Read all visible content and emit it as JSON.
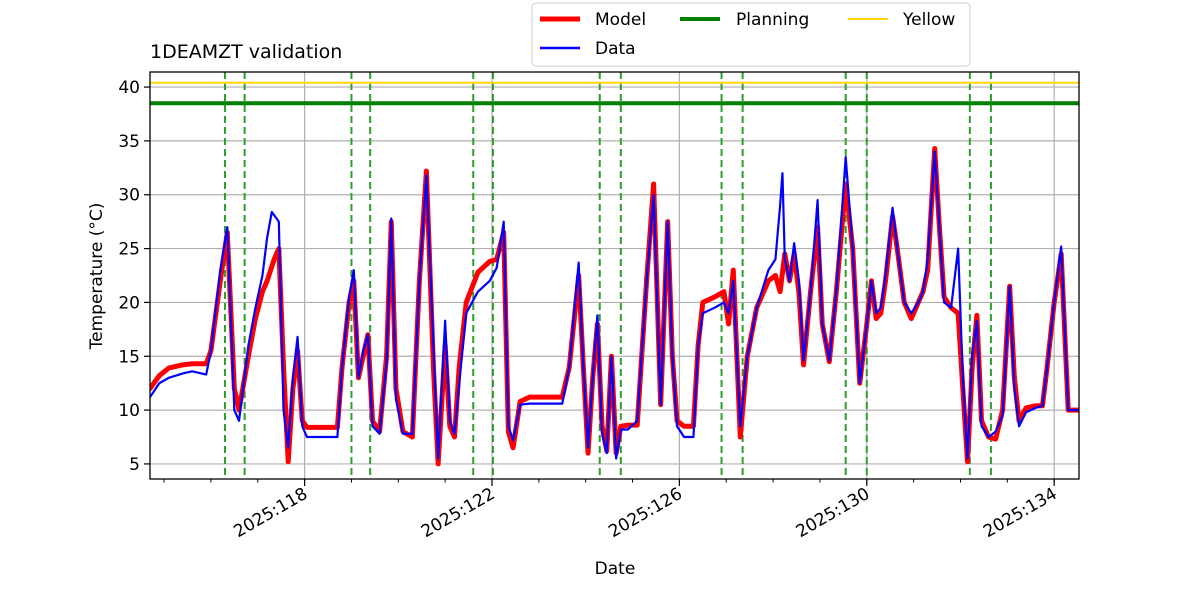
{
  "chart_data": {
    "type": "line",
    "title": "1DEAMZT validation",
    "xlabel": "Date",
    "ylabel": "Temperature ($^\\circ$C)",
    "ylabel_display": "Temperature (°C)",
    "xlim": [
      114.7,
      134.53
    ],
    "ylim": [
      3.6,
      41.4
    ],
    "xticks": [
      118,
      122,
      126,
      130,
      134
    ],
    "xtick_labels": [
      "2025:118",
      "2025:122",
      "2025:126",
      "2025:130",
      "2025:134"
    ],
    "yticks": [
      5,
      10,
      15,
      20,
      25,
      30,
      35,
      40
    ],
    "ytick_labels": [
      "5",
      "10",
      "15",
      "20",
      "25",
      "30",
      "35",
      "40"
    ],
    "grid": true,
    "legend": {
      "position": "top-center, above plot",
      "entries": [
        {
          "label": "Model",
          "color": "#ff0000"
        },
        {
          "label": "Data",
          "color": "#0000ff"
        },
        {
          "label": "Planning",
          "color": "#008000"
        },
        {
          "label": "Yellow",
          "color": "#ffd700"
        }
      ]
    },
    "limits": {
      "planning": 38.5,
      "yellow": 40.4
    },
    "event_markers_x": [
      116.3,
      116.72,
      119.0,
      119.4,
      121.6,
      122.02,
      124.3,
      124.75,
      126.9,
      127.35,
      129.55,
      130.0,
      132.2,
      132.65
    ],
    "series": [
      {
        "name": "Model",
        "color": "#ff0000",
        "points": [
          [
            114.7,
            12
          ],
          [
            114.9,
            13.2
          ],
          [
            115.1,
            13.9
          ],
          [
            115.4,
            14.2
          ],
          [
            115.6,
            14.3
          ],
          [
            115.9,
            14.3
          ],
          [
            116.0,
            15.5
          ],
          [
            116.2,
            22
          ],
          [
            116.35,
            26.5
          ],
          [
            116.5,
            12
          ],
          [
            116.6,
            10
          ],
          [
            116.8,
            15
          ],
          [
            116.95,
            18.5
          ],
          [
            117.1,
            21
          ],
          [
            117.2,
            22
          ],
          [
            117.35,
            24
          ],
          [
            117.45,
            25
          ],
          [
            117.55,
            14
          ],
          [
            117.65,
            5.2
          ],
          [
            117.75,
            12
          ],
          [
            117.85,
            15.5
          ],
          [
            117.95,
            9
          ],
          [
            118.05,
            8.4
          ],
          [
            118.5,
            8.4
          ],
          [
            118.7,
            8.4
          ],
          [
            118.8,
            14
          ],
          [
            118.95,
            20
          ],
          [
            119.05,
            22
          ],
          [
            119.15,
            13
          ],
          [
            119.25,
            15
          ],
          [
            119.35,
            17
          ],
          [
            119.45,
            9
          ],
          [
            119.6,
            8
          ],
          [
            119.75,
            15
          ],
          [
            119.85,
            27.5
          ],
          [
            119.95,
            12
          ],
          [
            120.1,
            8
          ],
          [
            120.3,
            7.5
          ],
          [
            120.45,
            22
          ],
          [
            120.6,
            32.2
          ],
          [
            120.75,
            14
          ],
          [
            120.85,
            5
          ],
          [
            121.0,
            16
          ],
          [
            121.1,
            8.5
          ],
          [
            121.2,
            7.5
          ],
          [
            121.3,
            14
          ],
          [
            121.45,
            20
          ],
          [
            121.7,
            22.8
          ],
          [
            121.95,
            23.8
          ],
          [
            122.1,
            24
          ],
          [
            122.25,
            26.5
          ],
          [
            122.35,
            8
          ],
          [
            122.45,
            6.5
          ],
          [
            122.6,
            10.8
          ],
          [
            122.8,
            11.2
          ],
          [
            123.0,
            11.2
          ],
          [
            123.3,
            11.2
          ],
          [
            123.5,
            11.2
          ],
          [
            123.65,
            14
          ],
          [
            123.85,
            22.5
          ],
          [
            123.95,
            14
          ],
          [
            124.05,
            6
          ],
          [
            124.15,
            13
          ],
          [
            124.25,
            18
          ],
          [
            124.35,
            8.5
          ],
          [
            124.45,
            6.2
          ],
          [
            124.55,
            15
          ],
          [
            124.65,
            6
          ],
          [
            124.75,
            8.5
          ],
          [
            124.9,
            8.6
          ],
          [
            125.1,
            8.6
          ],
          [
            125.3,
            22
          ],
          [
            125.45,
            31
          ],
          [
            125.6,
            10.5
          ],
          [
            125.75,
            27.5
          ],
          [
            125.85,
            15
          ],
          [
            125.95,
            9
          ],
          [
            126.1,
            8.5
          ],
          [
            126.3,
            8.5
          ],
          [
            126.4,
            16
          ],
          [
            126.5,
            20
          ],
          [
            126.75,
            20.5
          ],
          [
            126.95,
            21
          ],
          [
            127.05,
            18
          ],
          [
            127.15,
            23
          ],
          [
            127.3,
            7.5
          ],
          [
            127.45,
            15
          ],
          [
            127.65,
            19.5
          ],
          [
            127.9,
            22
          ],
          [
            128.05,
            22.5
          ],
          [
            128.15,
            21
          ],
          [
            128.25,
            24.5
          ],
          [
            128.35,
            22
          ],
          [
            128.45,
            24.5
          ],
          [
            128.55,
            21
          ],
          [
            128.65,
            14.2
          ],
          [
            128.8,
            21
          ],
          [
            128.95,
            27
          ],
          [
            129.05,
            18
          ],
          [
            129.2,
            14.5
          ],
          [
            129.35,
            21
          ],
          [
            129.55,
            31
          ],
          [
            129.7,
            25
          ],
          [
            129.85,
            12.5
          ],
          [
            130.0,
            18
          ],
          [
            130.1,
            22
          ],
          [
            130.2,
            18.5
          ],
          [
            130.3,
            19
          ],
          [
            130.4,
            22
          ],
          [
            130.55,
            28
          ],
          [
            130.65,
            25
          ],
          [
            130.8,
            20
          ],
          [
            130.95,
            18.5
          ],
          [
            131.1,
            20
          ],
          [
            131.2,
            21
          ],
          [
            131.3,
            23
          ],
          [
            131.45,
            34.3
          ],
          [
            131.55,
            27
          ],
          [
            131.65,
            20.5
          ],
          [
            131.8,
            19.5
          ],
          [
            131.95,
            19
          ],
          [
            132.05,
            12
          ],
          [
            132.15,
            5.2
          ],
          [
            132.25,
            14
          ],
          [
            132.35,
            18.8
          ],
          [
            132.45,
            9
          ],
          [
            132.6,
            7.5
          ],
          [
            132.75,
            7.3
          ],
          [
            132.9,
            10
          ],
          [
            133.05,
            21.5
          ],
          [
            133.15,
            13
          ],
          [
            133.25,
            9
          ],
          [
            133.4,
            10.2
          ],
          [
            133.6,
            10.4
          ],
          [
            133.75,
            10.4
          ],
          [
            133.85,
            14
          ],
          [
            134.0,
            20
          ],
          [
            134.15,
            24.5
          ],
          [
            134.3,
            10
          ],
          [
            134.53,
            10
          ],
          [
            134.53,
            10
          ]
        ]
      },
      {
        "name": "Data",
        "color": "#0000ff",
        "points": [
          [
            114.7,
            11.2
          ],
          [
            114.9,
            12.5
          ],
          [
            115.1,
            13.0
          ],
          [
            115.4,
            13.4
          ],
          [
            115.6,
            13.6
          ],
          [
            115.9,
            13.3
          ],
          [
            116.0,
            15.5
          ],
          [
            116.2,
            23
          ],
          [
            116.35,
            27
          ],
          [
            116.5,
            10
          ],
          [
            116.6,
            9
          ],
          [
            116.8,
            16
          ],
          [
            116.95,
            19.5
          ],
          [
            117.1,
            22.5
          ],
          [
            117.2,
            26
          ],
          [
            117.3,
            28.4
          ],
          [
            117.45,
            27.5
          ],
          [
            117.55,
            10
          ],
          [
            117.65,
            6.5
          ],
          [
            117.75,
            13
          ],
          [
            117.85,
            16.8
          ],
          [
            117.95,
            8.5
          ],
          [
            118.05,
            7.5
          ],
          [
            118.5,
            7.5
          ],
          [
            118.7,
            7.5
          ],
          [
            118.8,
            14
          ],
          [
            118.95,
            20.5
          ],
          [
            119.05,
            23
          ],
          [
            119.15,
            13
          ],
          [
            119.25,
            15.5
          ],
          [
            119.35,
            17
          ],
          [
            119.45,
            8.5
          ],
          [
            119.6,
            7.8
          ],
          [
            119.75,
            14.5
          ],
          [
            119.85,
            27.8
          ],
          [
            119.95,
            11
          ],
          [
            120.1,
            7.8
          ],
          [
            120.3,
            7.8
          ],
          [
            120.45,
            22
          ],
          [
            120.6,
            31.8
          ],
          [
            120.75,
            16
          ],
          [
            120.85,
            5.5
          ],
          [
            121.0,
            18.3
          ],
          [
            121.1,
            9
          ],
          [
            121.2,
            7.8
          ],
          [
            121.3,
            12.5
          ],
          [
            121.45,
            19
          ],
          [
            121.7,
            21
          ],
          [
            121.95,
            22
          ],
          [
            122.1,
            23.2
          ],
          [
            122.25,
            27.5
          ],
          [
            122.35,
            8.5
          ],
          [
            122.45,
            7.2
          ],
          [
            122.6,
            10.5
          ],
          [
            122.8,
            10.6
          ],
          [
            123.0,
            10.6
          ],
          [
            123.3,
            10.6
          ],
          [
            123.5,
            10.6
          ],
          [
            123.65,
            14
          ],
          [
            123.85,
            23.7
          ],
          [
            123.95,
            14
          ],
          [
            124.05,
            6.5
          ],
          [
            124.15,
            13
          ],
          [
            124.25,
            18.8
          ],
          [
            124.35,
            7.8
          ],
          [
            124.45,
            6
          ],
          [
            124.55,
            15
          ],
          [
            124.65,
            5.5
          ],
          [
            124.75,
            8.2
          ],
          [
            124.9,
            8.2
          ],
          [
            125.1,
            9
          ],
          [
            125.3,
            22
          ],
          [
            125.45,
            30
          ],
          [
            125.6,
            10.5
          ],
          [
            125.75,
            27.5
          ],
          [
            125.85,
            15
          ],
          [
            125.95,
            8.5
          ],
          [
            126.1,
            7.5
          ],
          [
            126.3,
            7.5
          ],
          [
            126.4,
            16
          ],
          [
            126.5,
            19
          ],
          [
            126.75,
            19.5
          ],
          [
            126.95,
            20
          ],
          [
            127.05,
            19
          ],
          [
            127.15,
            22
          ],
          [
            127.3,
            8.5
          ],
          [
            127.45,
            15
          ],
          [
            127.65,
            19.5
          ],
          [
            127.9,
            23
          ],
          [
            128.05,
            24
          ],
          [
            128.15,
            29
          ],
          [
            128.2,
            32
          ],
          [
            128.25,
            24
          ],
          [
            128.35,
            22
          ],
          [
            128.45,
            25.5
          ],
          [
            128.55,
            22
          ],
          [
            128.65,
            14.6
          ],
          [
            128.8,
            21
          ],
          [
            128.95,
            29.5
          ],
          [
            129.05,
            18
          ],
          [
            129.2,
            14.6
          ],
          [
            129.35,
            21
          ],
          [
            129.55,
            33.5
          ],
          [
            129.7,
            25
          ],
          [
            129.85,
            12.5
          ],
          [
            130.0,
            18
          ],
          [
            130.1,
            22
          ],
          [
            130.2,
            19
          ],
          [
            130.3,
            19.5
          ],
          [
            130.4,
            22.5
          ],
          [
            130.55,
            28.8
          ],
          [
            130.65,
            25
          ],
          [
            130.8,
            20
          ],
          [
            130.95,
            19
          ],
          [
            131.1,
            20
          ],
          [
            131.2,
            21
          ],
          [
            131.3,
            24
          ],
          [
            131.45,
            34
          ],
          [
            131.55,
            27
          ],
          [
            131.65,
            20
          ],
          [
            131.8,
            19.5
          ],
          [
            131.95,
            25
          ],
          [
            132.05,
            13
          ],
          [
            132.15,
            5.5
          ],
          [
            132.25,
            15
          ],
          [
            132.35,
            18.3
          ],
          [
            132.45,
            8.5
          ],
          [
            132.6,
            7.5
          ],
          [
            132.75,
            8
          ],
          [
            132.9,
            9.5
          ],
          [
            133.05,
            21.5
          ],
          [
            133.15,
            12
          ],
          [
            133.25,
            8.5
          ],
          [
            133.4,
            9.8
          ],
          [
            133.6,
            10.2
          ],
          [
            133.75,
            10.4
          ],
          [
            133.85,
            14
          ],
          [
            134.0,
            20
          ],
          [
            134.15,
            25.2
          ],
          [
            134.3,
            10
          ],
          [
            134.53,
            10
          ],
          [
            134.53,
            10
          ]
        ]
      }
    ]
  }
}
